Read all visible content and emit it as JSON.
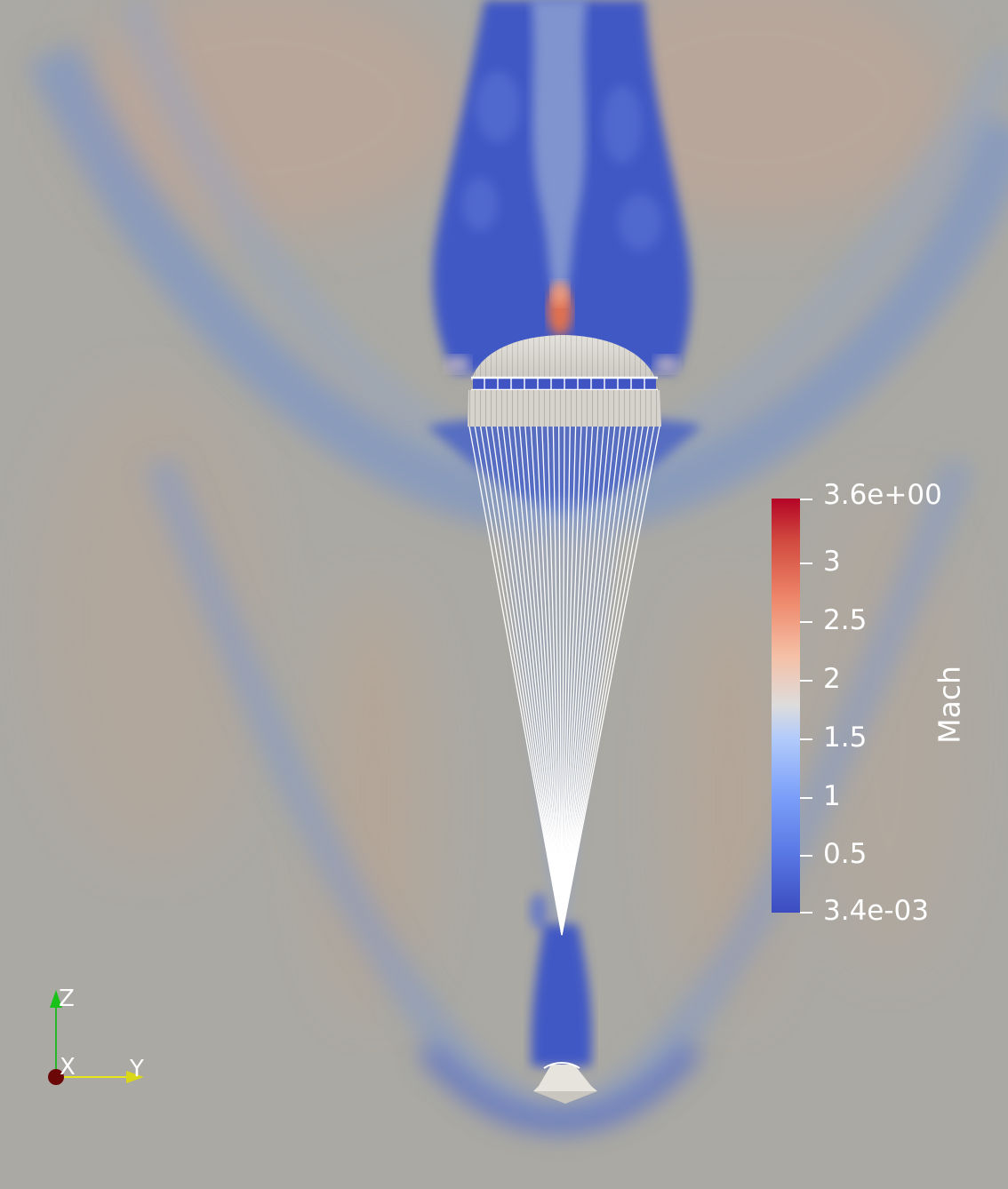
{
  "colorbar": {
    "title": "Mach",
    "tick_labels": [
      "3.6e+00",
      "3",
      "2.5",
      "2",
      "1.5",
      "1",
      "0.5",
      "3.4e-03"
    ],
    "tick_values": [
      3.6,
      3.0,
      2.5,
      2.0,
      1.5,
      1.0,
      0.5,
      0.0034
    ],
    "range": [
      0.0034,
      3.6
    ],
    "colormap": [
      "#3b4cc0",
      "#7396f5",
      "#b0cbfc",
      "#dddcdc",
      "#f6b89c",
      "#e7745b",
      "#b40426"
    ]
  },
  "orientation_axes": {
    "z_label": "Z",
    "x_label": "X",
    "y_label": "Y",
    "z_color": "#19c219",
    "x_color": "#7a0a0a",
    "y_color": "#e6e61a"
  },
  "scene": {
    "background_color": "#aba9a3",
    "wake_color": "#3e57c0",
    "canopy_color": "#dcdad4",
    "suspension_lines_color": "#ffffff",
    "capsule_color": "#e6e3dc"
  }
}
